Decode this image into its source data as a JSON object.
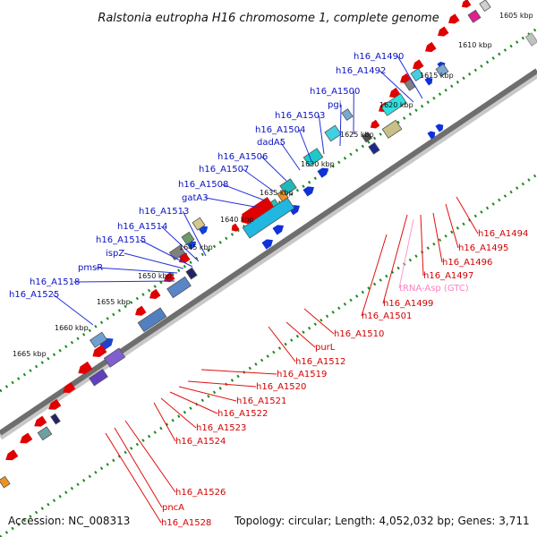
{
  "title": "Ralstonia eutropha H16 chromosome 1, complete genome",
  "accession": "Accession: NC_008313",
  "topology": "Topology: circular; Length: 4,052,032 bp; Genes: 3,711",
  "ticks": [
    "1605 kbp",
    "1610 kbp",
    "1615 kbp",
    "1620 kbp",
    "1625 kbp",
    "1630 kbp",
    "1635 kbp",
    "1640 kbp",
    "1645 kbp",
    "1650 kbp",
    "1655 kbp",
    "1660 kbp",
    "1665 kbp"
  ],
  "top_labels": [
    "h16_A1490",
    "h16_A1492",
    "h16_A1500",
    "pgi",
    "h16_A1503",
    "h16_A1504",
    "dadA5",
    "h16_A1506",
    "h16_A1507",
    "h16_A1508",
    "gatA3",
    "h16_A1513",
    "h16_A1514",
    "h16_A1515",
    "ispZ",
    "pmsR",
    "h16_A1518",
    "h16_A1525"
  ],
  "bottom_labels": [
    "h16_A1494",
    "h16_A1495",
    "h16_A1496",
    "h16_A1497",
    "tRNA-Asp (GTC)",
    "h16_A1499",
    "h16_A1501",
    "h16_A1510",
    "purL",
    "h16_A1512",
    "h16_A1519",
    "h16_A1520",
    "h16_A1521",
    "h16_A1522",
    "h16_A1523",
    "h16_A1524",
    "h16_A1526",
    "pncA",
    "h16_A1528"
  ]
}
